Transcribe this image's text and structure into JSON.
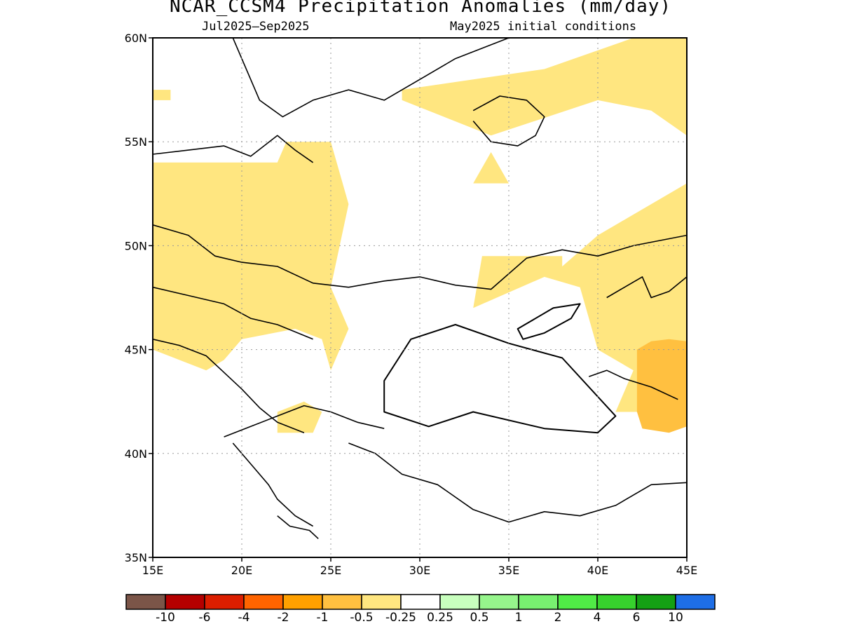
{
  "header": {
    "title": "NCAR_CCSM4 Precipitation Anomalies (mm/day)",
    "period": "Jul2025–Sep2025",
    "init": "May2025 initial conditions"
  },
  "map": {
    "lon_range": [
      15,
      45
    ],
    "lat_range": [
      35,
      60
    ],
    "x_ticks": [
      {
        "value": 15,
        "label": "15E"
      },
      {
        "value": 20,
        "label": "20E"
      },
      {
        "value": 25,
        "label": "25E"
      },
      {
        "value": 30,
        "label": "30E"
      },
      {
        "value": 35,
        "label": "35E"
      },
      {
        "value": 40,
        "label": "40E"
      },
      {
        "value": 45,
        "label": "45E"
      }
    ],
    "y_ticks": [
      {
        "value": 60,
        "label": "60N"
      },
      {
        "value": 55,
        "label": "55N"
      },
      {
        "value": 50,
        "label": "50N"
      },
      {
        "value": 45,
        "label": "45N"
      },
      {
        "value": 40,
        "label": "40N"
      },
      {
        "value": 35,
        "label": "35N"
      }
    ],
    "grid": "dotted",
    "colors": {
      "light_dry": "#ffe680",
      "dry": "#ffc040",
      "coast": "#000000"
    },
    "anomaly_regions": [
      {
        "level": "-0.5 to -0.25",
        "lon": [
          15.0,
          16.0
        ],
        "lat": [
          57.5,
          57.0
        ]
      },
      {
        "level": "-0.5 to -0.25",
        "lon": [
          29.0,
          37.0,
          42.0,
          45.0,
          45.0,
          43.0,
          40.0,
          34.0,
          29.0
        ],
        "lat": [
          57.5,
          58.5,
          60.0,
          60.0,
          55.3,
          56.5,
          57.0,
          55.3,
          57.0
        ]
      },
      {
        "level": "-0.5 to -0.25",
        "lon": [
          33.0,
          34.0,
          35.0
        ],
        "lat": [
          53.0,
          54.5,
          53.0
        ]
      },
      {
        "level": "-0.5 to -0.25",
        "lon": [
          15.0,
          22.0,
          22.5,
          25.0,
          26.0,
          25.0,
          26.0,
          25.0,
          24.5,
          23.0,
          20.0,
          19.0,
          18.0,
          15.0
        ],
        "lat": [
          54.0,
          54.0,
          55.0,
          55.0,
          52.0,
          48.0,
          46.0,
          44.0,
          45.5,
          46.0,
          45.5,
          44.5,
          44.0,
          45.0
        ]
      },
      {
        "level": "-0.5 to -0.25",
        "lon": [
          38.0,
          40.0,
          45.0,
          45.0,
          41.0,
          42.0,
          40.0,
          39.0,
          37.0,
          33.0,
          33.5,
          38.0
        ],
        "lat": [
          49.0,
          50.5,
          53.0,
          42.0,
          42.0,
          44.0,
          45.0,
          48.0,
          48.5,
          47.0,
          49.5,
          49.5
        ]
      },
      {
        "level": "-0.5 to -0.25",
        "lon": [
          22.0,
          23.5,
          24.5,
          24.0,
          22.0
        ],
        "lat": [
          42.0,
          42.5,
          42.0,
          41.0,
          41.0
        ]
      },
      {
        "level": "-1 to -0.5",
        "lon": [
          42.2,
          43.0,
          44.0,
          45.0,
          45.0,
          44.0,
          42.5,
          42.2
        ],
        "lat": [
          45.0,
          45.4,
          45.5,
          45.4,
          41.3,
          41.0,
          41.2,
          42.0
        ]
      }
    ],
    "water_bodies": [
      {
        "name": "Black Sea",
        "lon": [
          28.0,
          29.5,
          32.0,
          35.0,
          38.0,
          41.0,
          40.0,
          37.0,
          33.0,
          30.5,
          28.0
        ],
        "lat": [
          43.5,
          45.5,
          46.2,
          45.3,
          44.6,
          41.8,
          41.0,
          41.2,
          42.0,
          41.3,
          42.0
        ]
      },
      {
        "name": "Sea of Azov",
        "lon": [
          35.5,
          37.5,
          39.0,
          38.5,
          37.0,
          35.8
        ],
        "lat": [
          46.0,
          47.0,
          47.2,
          46.5,
          45.8,
          45.5
        ]
      }
    ]
  },
  "colorbar": {
    "bins": [
      {
        "color": "#7b5548"
      },
      {
        "color": "#b50000"
      },
      {
        "color": "#dc1e00"
      },
      {
        "color": "#ff6400"
      },
      {
        "color": "#ffa000"
      },
      {
        "color": "#ffc040"
      },
      {
        "color": "#ffe680"
      },
      {
        "color": "#ffffff"
      },
      {
        "color": "#c8ffbe"
      },
      {
        "color": "#96f58c"
      },
      {
        "color": "#78f070"
      },
      {
        "color": "#50eb46"
      },
      {
        "color": "#37d22d"
      },
      {
        "color": "#14a014"
      },
      {
        "color": "#1e6ee6"
      }
    ],
    "labels": [
      "-10",
      "-6",
      "-4",
      "-2",
      "-1",
      "-0.5",
      "-0.25",
      "0.25",
      "0.5",
      "1",
      "2",
      "4",
      "6",
      "10"
    ]
  }
}
